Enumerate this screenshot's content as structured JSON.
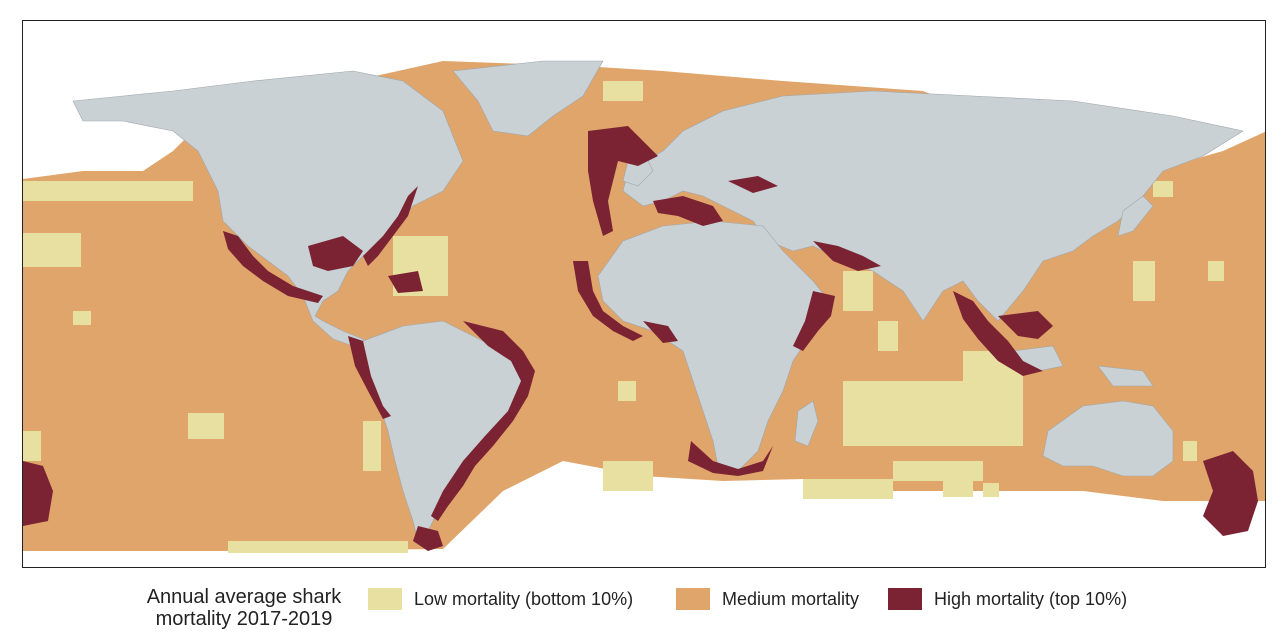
{
  "colors": {
    "low": "#e8e0a1",
    "medium": "#e0a56a",
    "high": "#7b2333",
    "land": "#c9d1d4",
    "land_border": "#9fa7ab",
    "ice": "#ffffff"
  },
  "legend": {
    "title_line1": "Annual average shark",
    "title_line2": "mortality 2017-2019",
    "items": [
      {
        "label": "Low mortality (bottom 10%)",
        "color": "#e8e0a1"
      },
      {
        "label": "Medium mortality",
        "color": "#e0a56a"
      },
      {
        "label": "High mortality (top 10%)",
        "color": "#7b2333"
      }
    ]
  }
}
